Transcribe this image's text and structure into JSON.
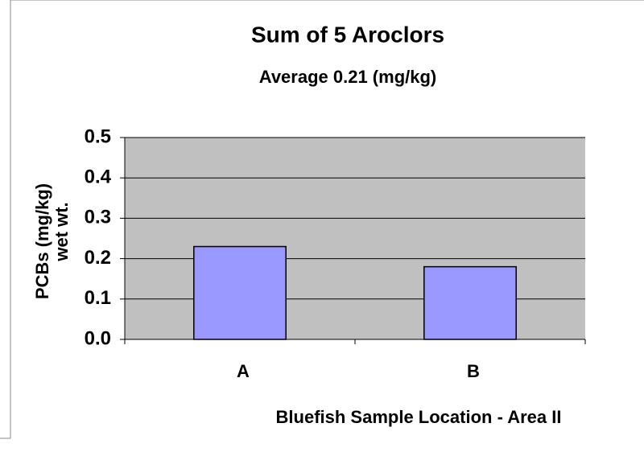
{
  "chart_data": {
    "type": "bar",
    "title": "Sum of 5 Aroclors",
    "subtitle": "Average 0.21 (mg/kg)",
    "y_label": [
      "PCBs (mg/kg)",
      "wet wt."
    ],
    "x_label": "Bluefish Sample Location - Area II",
    "categories": [
      "A",
      "B"
    ],
    "values": [
      0.23,
      0.18
    ],
    "color": "#9999ff",
    "ylim": [
      0,
      0.5
    ],
    "yticks": [
      {
        "value": 0,
        "label": "0.0"
      },
      0.1,
      0.2,
      0.3,
      0.4,
      0.5
    ],
    "grid": true
  }
}
